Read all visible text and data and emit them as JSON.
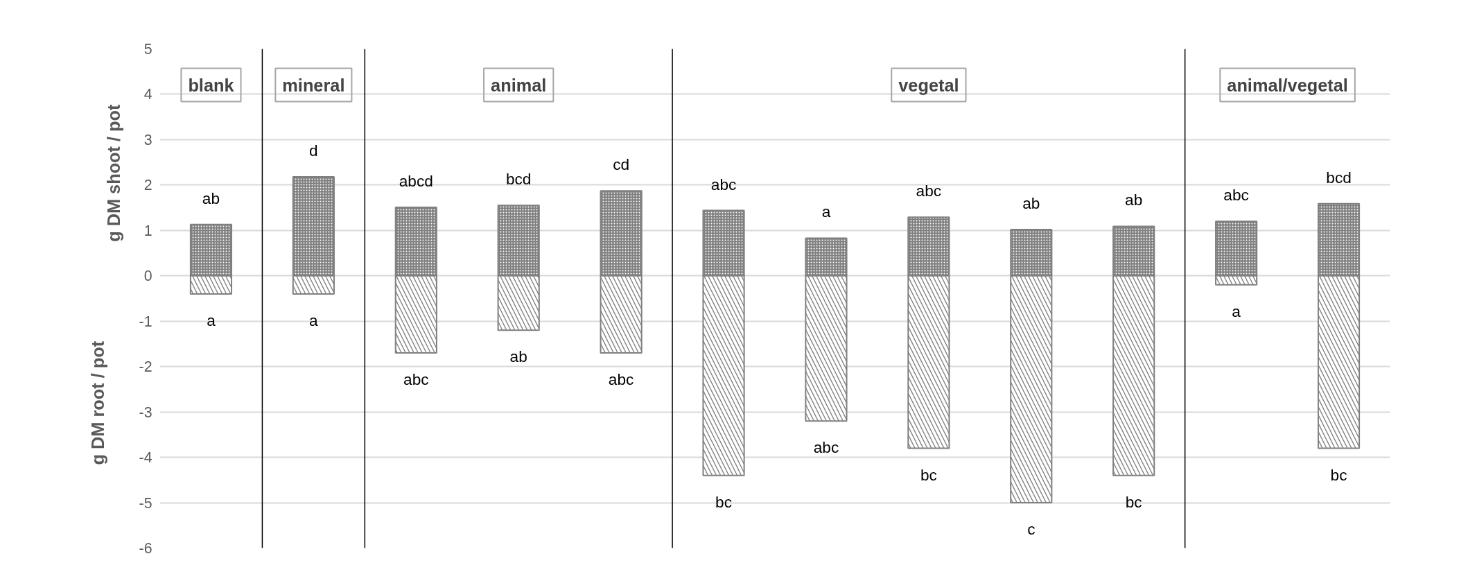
{
  "chart_data": {
    "type": "bar",
    "ylabel": "g DM shoot / pot",
    "y2label": "g DM root / pot",
    "categories": [
      null,
      null,
      null,
      null,
      null,
      null,
      null,
      null,
      null,
      null,
      null,
      null
    ],
    "tick_labels": "y",
    "series": [
      {
        "color": "#808080",
        "values": [
          1.13,
          2.18,
          1.51,
          1.55,
          1.87,
          1.44,
          0.83,
          1.29,
          1.02,
          1.09,
          1.2,
          1.59
        ],
        "value_labels": [
          "ab",
          "d",
          "abcd",
          "bcd",
          "cd",
          "abc",
          "a",
          "abc",
          "ab",
          "ab",
          "abc",
          "bcd"
        ]
      },
      {
        "color": "#808080",
        "values": [
          -0.4,
          -0.4,
          -1.7,
          -1.2,
          -1.7,
          -4.4,
          -3.2,
          -3.8,
          -5.0,
          -4.4,
          -0.2,
          -3.8
        ],
        "value_labels": [
          "a",
          "a",
          "abc",
          "ab",
          "abc",
          "bc",
          "abc",
          "bc",
          "c",
          "bc",
          "a",
          "bc"
        ]
      }
    ],
    "ylim": [
      -6,
      5
    ],
    "yticks": [
      -6,
      -5,
      -4,
      -3,
      -2,
      -1,
      0,
      1,
      2,
      3,
      4,
      5
    ],
    "grid": "y",
    "stacked": true,
    "annotations": [
      "blank",
      "mineral",
      "animal",
      "vegetal",
      "animal/vegetal"
    ]
  }
}
